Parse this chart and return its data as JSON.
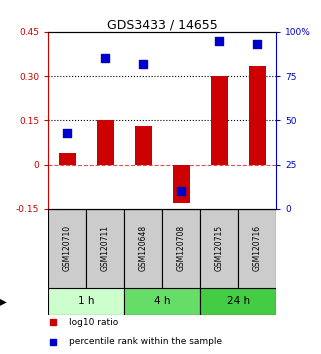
{
  "title": "GDS3433 / 14655",
  "samples": [
    "GSM120710",
    "GSM120711",
    "GSM120648",
    "GSM120708",
    "GSM120715",
    "GSM120716"
  ],
  "log10_ratio": [
    0.04,
    0.15,
    0.13,
    -0.13,
    0.3,
    0.335
  ],
  "percentile_rank": [
    43,
    85,
    82,
    10,
    95,
    93
  ],
  "ylim_left": [
    -0.15,
    0.45
  ],
  "ylim_right": [
    0,
    100
  ],
  "yticks_left": [
    -0.15,
    0.0,
    0.15,
    0.3,
    0.45
  ],
  "yticks_left_labels": [
    "-0.15",
    "0",
    "0.15",
    "0.30",
    "0.45"
  ],
  "yticks_right": [
    0,
    25,
    50,
    75,
    100
  ],
  "yticks_right_labels": [
    "0",
    "25",
    "50",
    "75",
    "100%"
  ],
  "hlines_dotted": [
    0.15,
    0.3
  ],
  "hline_dashed": 0.0,
  "bar_color": "#cc0000",
  "dot_color": "#0000cc",
  "time_groups": [
    {
      "label": "1 h",
      "start": 0,
      "end": 2,
      "color": "#ccffcc"
    },
    {
      "label": "4 h",
      "start": 2,
      "end": 4,
      "color": "#66dd66"
    },
    {
      "label": "24 h",
      "start": 4,
      "end": 6,
      "color": "#44cc44"
    }
  ],
  "bar_width": 0.45,
  "dot_size": 30,
  "legend_items": [
    {
      "label": "log10 ratio",
      "color": "#cc0000",
      "marker": "s"
    },
    {
      "label": "percentile rank within the sample",
      "color": "#0000cc",
      "marker": "s"
    }
  ],
  "bg_color": "#ffffff",
  "plot_bg": "#ffffff",
  "label_box_color": "#cccccc"
}
